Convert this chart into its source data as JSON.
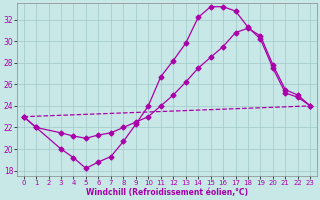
{
  "xlabel": "Windchill (Refroidissement éolien,°C)",
  "background_color": "#c8e8e8",
  "grid_color": "#a0c8c8",
  "line_color": "#aa00aa",
  "xlim": [
    -0.5,
    23.5
  ],
  "ylim": [
    17.5,
    33.5
  ],
  "yticks": [
    18,
    20,
    22,
    24,
    26,
    28,
    30,
    32
  ],
  "xticks": [
    0,
    1,
    2,
    3,
    4,
    5,
    6,
    7,
    8,
    9,
    10,
    11,
    12,
    13,
    14,
    15,
    16,
    17,
    18,
    19,
    20,
    21,
    22,
    23
  ],
  "line1_x": [
    0,
    1,
    3,
    4,
    5,
    6,
    7,
    8,
    9,
    10,
    11,
    12,
    13,
    14,
    15,
    16,
    17,
    18,
    19,
    20,
    21,
    22,
    23
  ],
  "line1_y": [
    23.0,
    22.0,
    20.0,
    19.2,
    18.2,
    18.8,
    19.3,
    20.7,
    22.3,
    24.0,
    26.7,
    28.2,
    29.8,
    32.2,
    33.2,
    33.2,
    32.8,
    31.3,
    30.2,
    27.5,
    25.2,
    24.8,
    24.0
  ],
  "line2_x": [
    0,
    23
  ],
  "line2_y": [
    23.0,
    24.0
  ],
  "line3_x": [
    0,
    1,
    3,
    4,
    5,
    6,
    7,
    8,
    9,
    10,
    11,
    12,
    13,
    14,
    15,
    16,
    17,
    18,
    19,
    20,
    21,
    22,
    23
  ],
  "line3_y": [
    23.0,
    22.0,
    21.5,
    21.2,
    21.0,
    21.3,
    21.5,
    22.0,
    22.5,
    23.0,
    24.0,
    25.0,
    26.2,
    27.5,
    28.5,
    29.5,
    30.8,
    31.2,
    30.5,
    27.8,
    25.5,
    25.0,
    24.0
  ]
}
